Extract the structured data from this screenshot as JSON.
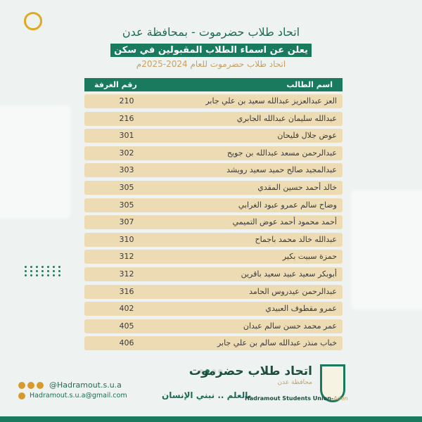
{
  "header": {
    "title": "اتحاد طلاب حضرموت - بمحافظة عدن",
    "banner": "يعلن عن اسماء الطلاب المقبولين  في سكن",
    "subtitle": "اتحاد طلاب حضرموت للعام 2024-2025م"
  },
  "table": {
    "columns": {
      "name": "اسم الطالب",
      "room": "رقم الغرفة"
    },
    "rows": [
      {
        "name": "العز عبدالعزيز عبدالله سعيد بن علي جابر",
        "room": "210"
      },
      {
        "name": "عبدالله سليمان عبدالله الجابري",
        "room": "216"
      },
      {
        "name": "عوض جلال فليحان",
        "room": "301"
      },
      {
        "name": "عبدالرحمن مسعد عبدالله بن جويح",
        "room": "302"
      },
      {
        "name": "عبدالمجيد صالح حميد سعيد رويشد",
        "room": "303"
      },
      {
        "name": "خالد أحمد حسين المقدي",
        "room": "305"
      },
      {
        "name": "وضاح سالم عمرو عبود الغرابي",
        "room": "305"
      },
      {
        "name": "أحمد محمود أحمد عوض التميمي",
        "room": "307"
      },
      {
        "name": "عبدالله خالد محمد باجماح",
        "room": "310"
      },
      {
        "name": "حمزة سبيت بكير",
        "room": "312"
      },
      {
        "name": "أبوبكر سعيد عبيد سعيد باقرين",
        "room": "312"
      },
      {
        "name": "عبدالرحمن عيدروس الحامد",
        "room": "316"
      },
      {
        "name": "عمرو مقطوف العبيدي",
        "room": "402"
      },
      {
        "name": "عمر محمد حسن سالم عبدان",
        "room": "405"
      },
      {
        "name": "خباب منذر عبدالله سالم بن علي جابر",
        "room": "406"
      }
    ]
  },
  "footer": {
    "handle": "@Hadramout.s.u.a",
    "email": "Hadramout.s.u.a@gmail.com",
    "slogan": "بالعلم .. نبني الإنسان",
    "logo": {
      "ar_title": "اتحاد طلاب حضرموت",
      "ar_sub": "محافظة عدن",
      "en": "Hadramout Students Union-",
      "en_city": "Aden"
    },
    "pager": {
      "count": 4,
      "active": 1
    }
  },
  "colors": {
    "primary": "#1a7a5e",
    "row": "#eddcb3",
    "gold": "#c9a060",
    "accent": "#e0a91f"
  }
}
